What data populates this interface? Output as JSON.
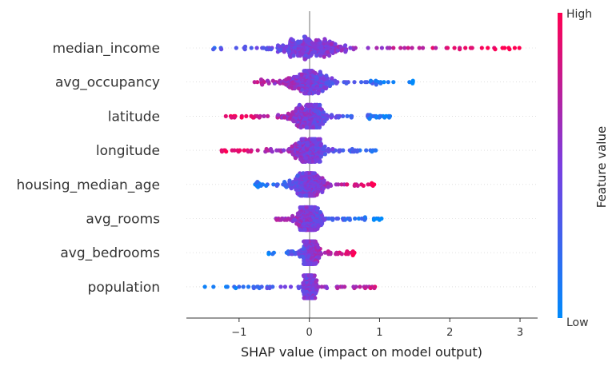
{
  "chart_data": {
    "type": "scatter",
    "subtype": "shap-beeswarm",
    "title": "",
    "xlabel": "SHAP value (impact on model output)",
    "xlim": [
      -1.75,
      3.25
    ],
    "x_ticks": [
      -1,
      0,
      1,
      2,
      3
    ],
    "x_tick_labels": [
      "−1",
      "0",
      "1",
      "2",
      "3"
    ],
    "features": [
      {
        "name": "median_income",
        "min": -1.4,
        "max": 3.0,
        "spread": 0.45,
        "low_side": "negative"
      },
      {
        "name": "avg_occupancy",
        "min": -0.85,
        "max": 1.5,
        "spread": 0.3,
        "low_side": "positive"
      },
      {
        "name": "latitude",
        "min": -1.2,
        "max": 1.3,
        "spread": 0.25,
        "low_side": "positive"
      },
      {
        "name": "longitude",
        "min": -1.3,
        "max": 1.05,
        "spread": 0.22,
        "low_side": "positive"
      },
      {
        "name": "housing_median_age",
        "min": -0.8,
        "max": 0.95,
        "spread": 0.2,
        "low_side": "negative"
      },
      {
        "name": "avg_rooms",
        "min": -0.5,
        "max": 1.05,
        "spread": 0.18,
        "low_side": "positive"
      },
      {
        "name": "avg_bedrooms",
        "min": -0.58,
        "max": 0.65,
        "spread": 0.1,
        "low_side": "negative"
      },
      {
        "name": "population",
        "min": -1.52,
        "max": 0.95,
        "spread": 0.08,
        "low_side": "negative"
      }
    ],
    "colorbar": {
      "label": "Feature value",
      "high_label": "High",
      "low_label": "Low",
      "colors": [
        "#008afb",
        "#7a3ee0",
        "#ff0052"
      ]
    },
    "grid": false,
    "legend": "colorbar-right"
  }
}
